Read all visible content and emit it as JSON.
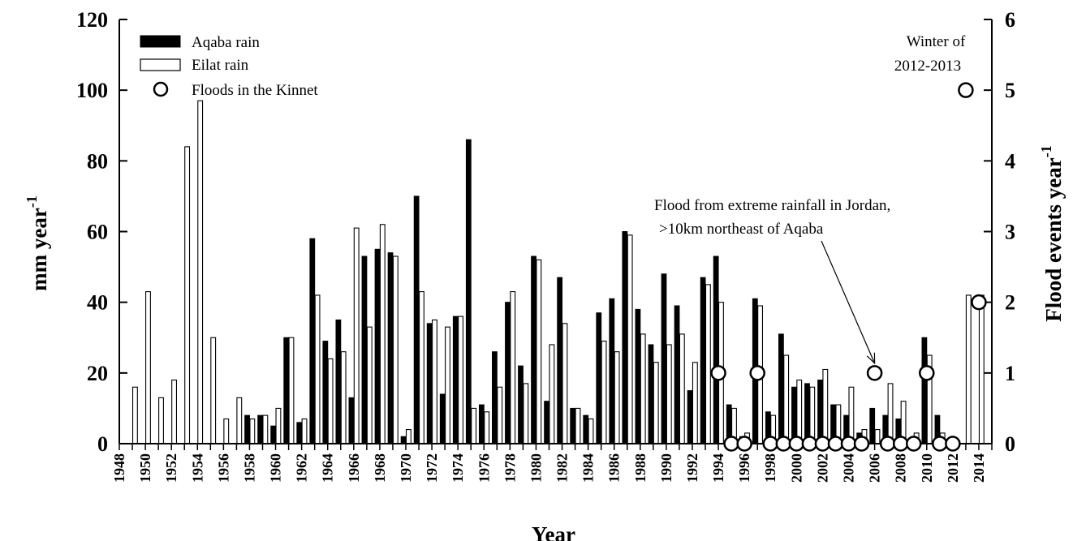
{
  "chart_data": {
    "type": "bar",
    "x_label": "Year",
    "y_left_label": "mm year",
    "y_left_label_sup": "-1",
    "y_right_label": "Flood events year",
    "y_right_label_sup": "-1",
    "y_left_range": [
      0,
      120
    ],
    "y_right_range": [
      0,
      6
    ],
    "y_left_ticks": [
      "0",
      "20",
      "40",
      "60",
      "80",
      "100",
      "120"
    ],
    "y_right_ticks": [
      "0",
      "1",
      "2",
      "3",
      "4",
      "5",
      "6"
    ],
    "x_range": [
      1948,
      2015
    ],
    "x_tick_labels": [
      "1948",
      "1950",
      "1952",
      "1954",
      "1956",
      "1958",
      "1960",
      "1962",
      "1964",
      "1966",
      "1968",
      "1970",
      "1972",
      "1974",
      "1976",
      "1978",
      "1980",
      "1982",
      "1984",
      "1986",
      "1988",
      "1990",
      "1992",
      "1994",
      "1996",
      "1998",
      "2000",
      "2002",
      "2004",
      "2006",
      "2008",
      "2010",
      "2012",
      "2014"
    ],
    "legend": {
      "position": "top-left",
      "aqaba": "Aqaba rain",
      "eilat": "Eilat rain",
      "floods": "Floods in the Kinnet"
    },
    "series": [
      {
        "name": "Aqaba rain",
        "color": "#000000",
        "values": [
          [
            1958,
            8
          ],
          [
            1959,
            8
          ],
          [
            1960,
            5
          ],
          [
            1961,
            30
          ],
          [
            1962,
            6
          ],
          [
            1963,
            58
          ],
          [
            1964,
            29
          ],
          [
            1965,
            35
          ],
          [
            1966,
            13
          ],
          [
            1967,
            53
          ],
          [
            1968,
            55
          ],
          [
            1969,
            54
          ],
          [
            1970,
            2
          ],
          [
            1971,
            70
          ],
          [
            1972,
            34
          ],
          [
            1973,
            14
          ],
          [
            1974,
            36
          ],
          [
            1975,
            86
          ],
          [
            1976,
            11
          ],
          [
            1977,
            26
          ],
          [
            1978,
            40
          ],
          [
            1979,
            22
          ],
          [
            1980,
            53
          ],
          [
            1981,
            12
          ],
          [
            1982,
            47
          ],
          [
            1983,
            10
          ],
          [
            1984,
            8
          ],
          [
            1985,
            37
          ],
          [
            1986,
            41
          ],
          [
            1987,
            60
          ],
          [
            1988,
            38
          ],
          [
            1989,
            28
          ],
          [
            1990,
            48
          ],
          [
            1991,
            39
          ],
          [
            1992,
            15
          ],
          [
            1993,
            47
          ],
          [
            1994,
            53
          ],
          [
            1995,
            11
          ],
          [
            1996,
            2
          ],
          [
            1997,
            41
          ],
          [
            1998,
            9
          ],
          [
            1999,
            31
          ],
          [
            2000,
            16
          ],
          [
            2001,
            17
          ],
          [
            2002,
            18
          ],
          [
            2003,
            11
          ],
          [
            2004,
            8
          ],
          [
            2005,
            3
          ],
          [
            2006,
            10
          ],
          [
            2007,
            8
          ],
          [
            2008,
            7
          ],
          [
            2010,
            30
          ],
          [
            2011,
            8
          ]
        ]
      },
      {
        "name": "Eilat rain",
        "color": "#ffffff",
        "values": [
          [
            1949,
            16
          ],
          [
            1950,
            43
          ],
          [
            1951,
            13
          ],
          [
            1952,
            18
          ],
          [
            1953,
            84
          ],
          [
            1954,
            97
          ],
          [
            1955,
            30
          ],
          [
            1956,
            7
          ],
          [
            1957,
            13
          ],
          [
            1958,
            7
          ],
          [
            1959,
            8
          ],
          [
            1960,
            10
          ],
          [
            1961,
            30
          ],
          [
            1962,
            7
          ],
          [
            1963,
            42
          ],
          [
            1964,
            24
          ],
          [
            1965,
            26
          ],
          [
            1966,
            61
          ],
          [
            1967,
            33
          ],
          [
            1968,
            62
          ],
          [
            1969,
            53
          ],
          [
            1970,
            4
          ],
          [
            1971,
            43
          ],
          [
            1972,
            35
          ],
          [
            1973,
            33
          ],
          [
            1974,
            36
          ],
          [
            1975,
            10
          ],
          [
            1976,
            9
          ],
          [
            1977,
            16
          ],
          [
            1978,
            43
          ],
          [
            1979,
            17
          ],
          [
            1980,
            52
          ],
          [
            1981,
            28
          ],
          [
            1982,
            34
          ],
          [
            1983,
            10
          ],
          [
            1984,
            7
          ],
          [
            1985,
            29
          ],
          [
            1986,
            26
          ],
          [
            1987,
            59
          ],
          [
            1988,
            31
          ],
          [
            1989,
            23
          ],
          [
            1990,
            28
          ],
          [
            1991,
            31
          ],
          [
            1992,
            23
          ],
          [
            1993,
            45
          ],
          [
            1994,
            40
          ],
          [
            1995,
            10
          ],
          [
            1996,
            3
          ],
          [
            1997,
            39
          ],
          [
            1998,
            8
          ],
          [
            1999,
            25
          ],
          [
            2000,
            18
          ],
          [
            2001,
            16
          ],
          [
            2002,
            21
          ],
          [
            2003,
            11
          ],
          [
            2004,
            16
          ],
          [
            2005,
            4
          ],
          [
            2006,
            4
          ],
          [
            2007,
            17
          ],
          [
            2008,
            12
          ],
          [
            2009,
            3
          ],
          [
            2010,
            25
          ],
          [
            2011,
            3
          ],
          [
            2013,
            42
          ],
          [
            2014,
            42
          ]
        ]
      },
      {
        "name": "Floods in the Kinnet",
        "axis": "right",
        "marker": "open-circle",
        "values": [
          [
            1994,
            1
          ],
          [
            1995,
            0
          ],
          [
            1996,
            0
          ],
          [
            1997,
            1
          ],
          [
            1998,
            0
          ],
          [
            1999,
            0
          ],
          [
            2000,
            0
          ],
          [
            2001,
            0
          ],
          [
            2002,
            0
          ],
          [
            2003,
            0
          ],
          [
            2004,
            0
          ],
          [
            2005,
            0
          ],
          [
            2006,
            1
          ],
          [
            2007,
            0
          ],
          [
            2008,
            0
          ],
          [
            2009,
            0
          ],
          [
            2010,
            1
          ],
          [
            2011,
            0
          ],
          [
            2012,
            0
          ],
          [
            2013,
            5
          ],
          [
            2014,
            2
          ]
        ]
      }
    ],
    "annotations": {
      "winter_line1": "Winter of",
      "winter_line2": "2012-2013",
      "flood_line1": "Flood from extreme rainfall in Jordan,",
      "flood_line2": ">10km northeast of Aqaba",
      "flood_arrow_target": [
        2006,
        1
      ]
    }
  }
}
